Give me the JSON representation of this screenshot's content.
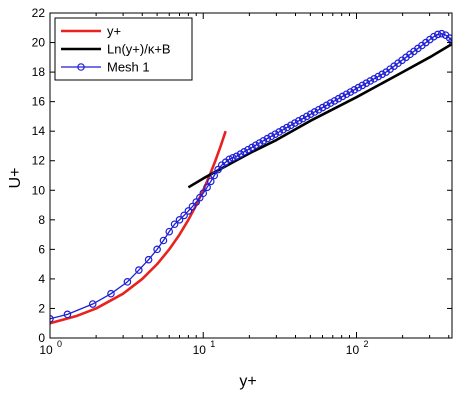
{
  "chart_data": {
    "type": "line",
    "xlabel": "y+",
    "ylabel": "U+",
    "xscale": "log",
    "xlim": [
      1,
      420
    ],
    "ylim": [
      0,
      22
    ],
    "grid": false,
    "legend_position": "top-left",
    "x_ticks": [
      {
        "value": 1,
        "base": "10",
        "exp": "0"
      },
      {
        "value": 10,
        "base": "10",
        "exp": "1"
      },
      {
        "value": 100,
        "base": "10",
        "exp": "2"
      }
    ],
    "y_ticks": [
      0,
      2,
      4,
      6,
      8,
      10,
      12,
      14,
      16,
      18,
      20,
      22
    ],
    "series": [
      {
        "name": "y+",
        "color": "#e8231f",
        "marker": "none",
        "x": [
          1,
          1.5,
          2,
          3,
          4,
          5,
          6,
          7,
          8,
          9,
          10,
          11,
          12,
          13,
          14
        ],
        "y": [
          1,
          1.5,
          2,
          3,
          4,
          5,
          6,
          7,
          8,
          9,
          10,
          11,
          12,
          13,
          14
        ]
      },
      {
        "name": "Ln(y+)/κ+B",
        "color": "#000000",
        "marker": "none",
        "x": [
          8,
          10,
          15,
          20,
          30,
          50,
          100,
          200,
          300,
          420
        ],
        "y": [
          10.2,
          10.8,
          11.8,
          12.5,
          13.4,
          14.7,
          16.3,
          18.0,
          19.0,
          19.9
        ]
      },
      {
        "name": "Mesh 1",
        "color": "#1f1fd6",
        "marker": "circle",
        "x": [
          1.0,
          1.3,
          1.9,
          2.5,
          3.2,
          3.8,
          4.4,
          5.0,
          5.5,
          6.0,
          6.5,
          7.0,
          7.5,
          8.0,
          8.5,
          9.0,
          9.5,
          10.0,
          10.6,
          11.2,
          11.8,
          12.5,
          13.2,
          14.0,
          14.8,
          15.6,
          16.5,
          17.5,
          18.5,
          19.6,
          20.8,
          22.0,
          23.3,
          24.7,
          26.2,
          27.8,
          29.5,
          31.3,
          33.2,
          35.2,
          37.3,
          39.6,
          42.0,
          44.6,
          47.3,
          50.2,
          53.3,
          56.6,
          60.1,
          63.8,
          67.7,
          71.9,
          76.3,
          81.0,
          86.0,
          91.3,
          96.9,
          102.9,
          109.2,
          115.9,
          123.0,
          130.6,
          138.6,
          147.1,
          156.1,
          165.7,
          175.9,
          186.7,
          198.2,
          210.4,
          223.3,
          237.0,
          251.6,
          267.1,
          283.5,
          300.9,
          319.4,
          339.0,
          359.8,
          381.9,
          405.4,
          420.0
        ],
        "y": [
          1.3,
          1.6,
          2.3,
          3.0,
          3.8,
          4.6,
          5.3,
          6.0,
          6.6,
          7.2,
          7.7,
          8.0,
          8.3,
          8.6,
          8.9,
          9.2,
          9.5,
          9.8,
          10.2,
          10.6,
          11.0,
          11.4,
          11.7,
          11.9,
          12.1,
          12.2,
          12.3,
          12.45,
          12.6,
          12.75,
          12.9,
          13.05,
          13.2,
          13.35,
          13.5,
          13.65,
          13.8,
          13.95,
          14.1,
          14.25,
          14.4,
          14.55,
          14.7,
          14.85,
          15.0,
          15.15,
          15.3,
          15.45,
          15.6,
          15.75,
          15.9,
          16.05,
          16.2,
          16.35,
          16.5,
          16.65,
          16.8,
          16.95,
          17.1,
          17.25,
          17.4,
          17.55,
          17.7,
          17.85,
          18.0,
          18.2,
          18.4,
          18.6,
          18.8,
          19.0,
          19.2,
          19.4,
          19.6,
          19.8,
          20.0,
          20.2,
          20.4,
          20.55,
          20.6,
          20.5,
          20.3,
          20.1
        ]
      }
    ]
  }
}
